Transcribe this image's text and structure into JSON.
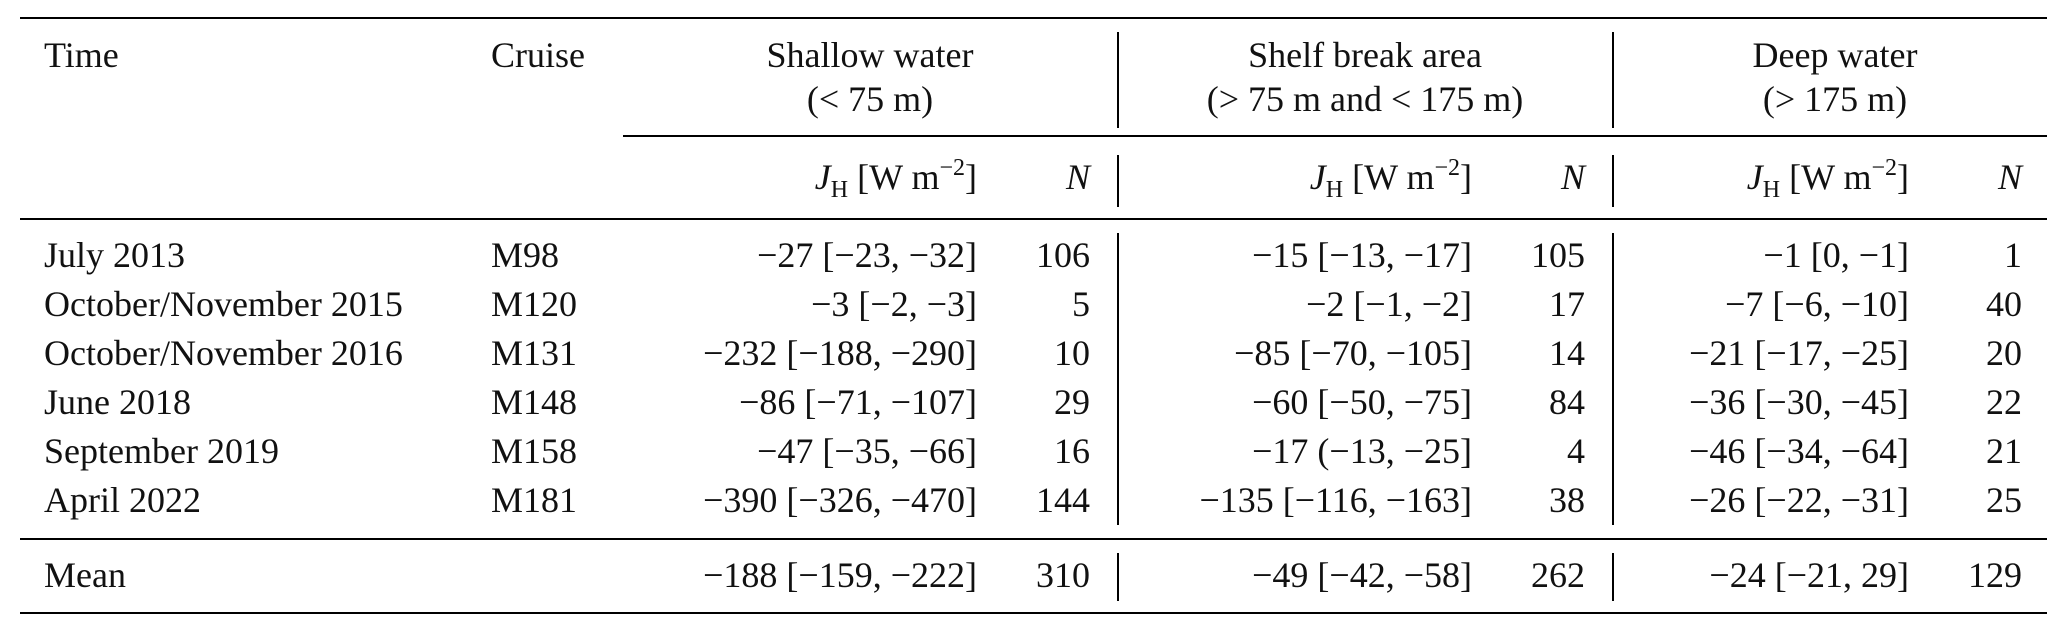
{
  "columns": {
    "time": "Time",
    "cruise": "Cruise",
    "groups": [
      {
        "title": "Shallow water",
        "subtitle": "(< 75 m)"
      },
      {
        "title": "Shelf break area",
        "subtitle": "(> 75 m and < 175 m)"
      },
      {
        "title": "Deep water",
        "subtitle": "(> 175 m)"
      }
    ],
    "jh_main": "J",
    "jh_sub": "H",
    "jh_unit_pre": "[W m",
    "jh_unit_exp": "−2",
    "jh_unit_post": "]",
    "n": "N"
  },
  "rows": [
    {
      "time": "July 2013",
      "cruise": "M98",
      "shallow_jh": "−27 [−23, −32]",
      "shallow_n": "106",
      "shelf_jh": "−15 [−13, −17]",
      "shelf_n": "105",
      "deep_jh": "−1 [0, −1]",
      "deep_n": "1"
    },
    {
      "time": "October/November 2015",
      "cruise": "M120",
      "shallow_jh": "−3 [−2, −3]",
      "shallow_n": "5",
      "shelf_jh": "−2 [−1, −2]",
      "shelf_n": "17",
      "deep_jh": "−7 [−6, −10]",
      "deep_n": "40"
    },
    {
      "time": "October/November 2016",
      "cruise": "M131",
      "shallow_jh": "−232 [−188, −290]",
      "shallow_n": "10",
      "shelf_jh": "−85 [−70, −105]",
      "shelf_n": "14",
      "deep_jh": "−21 [−17, −25]",
      "deep_n": "20"
    },
    {
      "time": "June 2018",
      "cruise": "M148",
      "shallow_jh": "−86 [−71, −107]",
      "shallow_n": "29",
      "shelf_jh": "−60 [−50, −75]",
      "shelf_n": "84",
      "deep_jh": "−36 [−30, −45]",
      "deep_n": "22"
    },
    {
      "time": "September 2019",
      "cruise": "M158",
      "shallow_jh": "−47 [−35, −66]",
      "shallow_n": "16",
      "shelf_jh": "−17 (−13, −25]",
      "shelf_n": "4",
      "deep_jh": "−46 [−34, −64]",
      "deep_n": "21"
    },
    {
      "time": "April 2022",
      "cruise": "M181",
      "shallow_jh": "−390 [−326, −470]",
      "shallow_n": "144",
      "shelf_jh": "−135 [−116, −163]",
      "shelf_n": "38",
      "deep_jh": "−26 [−22, −31]",
      "deep_n": "25"
    }
  ],
  "mean": {
    "label": "Mean",
    "shallow_jh": "−188 [−159, −222]",
    "shallow_n": "310",
    "shelf_jh": "−49 [−42, −58]",
    "shelf_n": "262",
    "deep_jh": "−24 [−21, 29]",
    "deep_n": "129"
  }
}
